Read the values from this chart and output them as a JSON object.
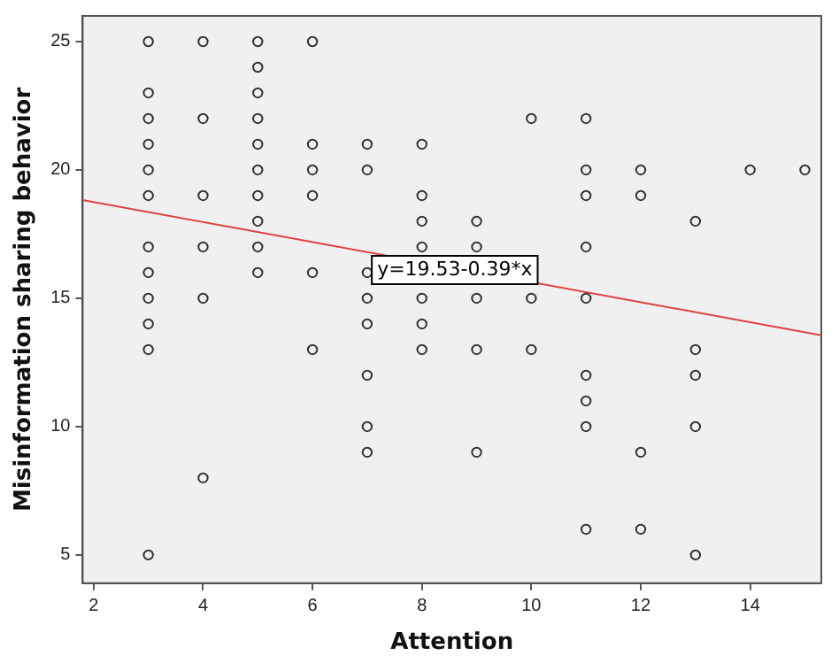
{
  "chart_data": {
    "type": "scatter",
    "xlabel": "Attention",
    "ylabel": "Misinformation sharing behavior",
    "xlim": [
      1.8,
      15.3
    ],
    "xticks": [
      2,
      4,
      6,
      8,
      10,
      12,
      14
    ],
    "ylim": [
      3.9,
      26
    ],
    "yticks": [
      5,
      10,
      15,
      20,
      25
    ],
    "grid": false,
    "legend": false,
    "marker": "circle",
    "annotations": [
      {
        "text": "y=19.53-0.39*x",
        "x": 8.6,
        "y": 16.1
      }
    ],
    "series": [
      {
        "color": "#333333",
        "x": [
          3,
          3,
          3,
          3,
          3,
          3,
          3,
          3,
          3,
          3,
          3,
          3,
          4,
          4,
          4,
          4,
          4,
          4,
          5,
          5,
          5,
          5,
          5,
          5,
          5,
          5,
          5,
          5,
          6,
          6,
          6,
          6,
          6,
          6,
          7,
          7,
          7,
          7,
          7,
          7,
          7,
          7,
          8,
          8,
          8,
          8,
          8,
          8,
          8,
          9,
          9,
          9,
          9,
          9,
          10,
          10,
          10,
          11,
          11,
          11,
          11,
          11,
          11,
          11,
          11,
          11,
          12,
          12,
          12,
          12,
          13,
          13,
          13,
          13,
          13,
          14,
          15
        ],
        "values": [
          25,
          23,
          22,
          21,
          20,
          19,
          17,
          16,
          15,
          14,
          13,
          5,
          25,
          22,
          19,
          17,
          15,
          8,
          25,
          24,
          23,
          22,
          21,
          20,
          19,
          18,
          17,
          16,
          25,
          21,
          20,
          19,
          16,
          13,
          21,
          20,
          16,
          15,
          14,
          12,
          10,
          9,
          21,
          19,
          18,
          17,
          15,
          14,
          13,
          18,
          17,
          15,
          13,
          9,
          22,
          15,
          13,
          22,
          20,
          19,
          17,
          15,
          12,
          11,
          10,
          6,
          20,
          19,
          9,
          6,
          18,
          13,
          12,
          10,
          5,
          20,
          20
        ]
      },
      {
        "type": "line",
        "color": "#e04040",
        "marker": "none",
        "x": [
          1.8,
          15.3
        ],
        "values": [
          18.83,
          13.56
        ]
      }
    ]
  }
}
